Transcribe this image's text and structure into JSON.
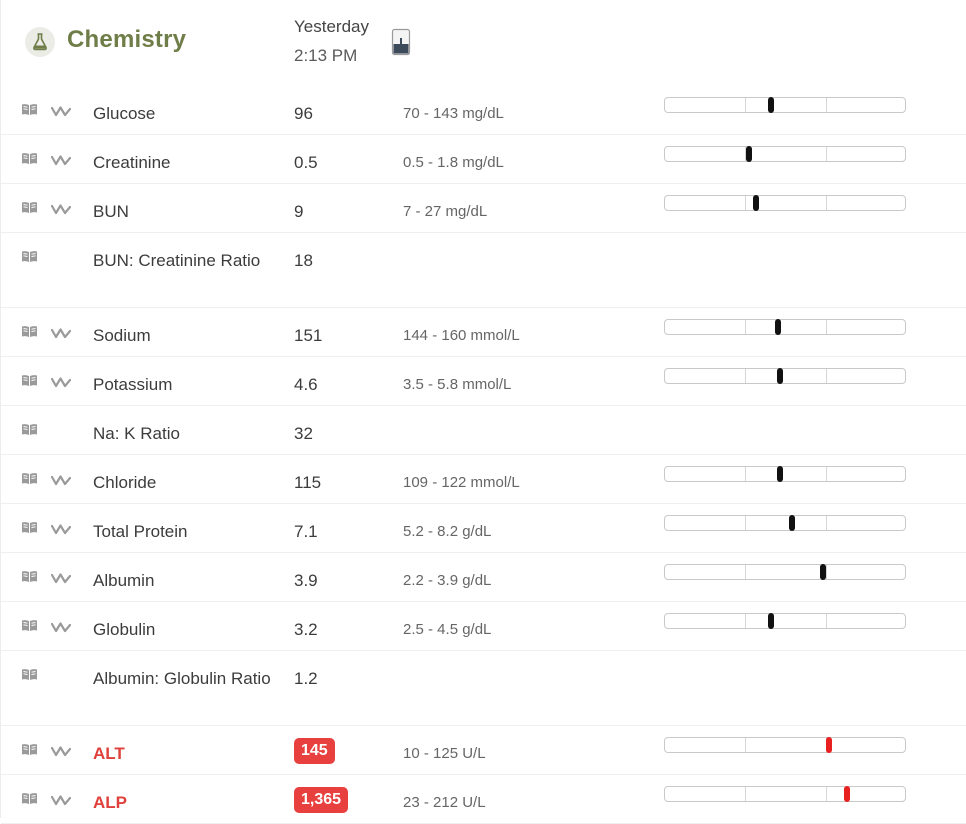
{
  "section": {
    "title": "Chemistry",
    "icon": "flask-icon",
    "date_line1": "Yesterday",
    "date_line2": "2:13 PM",
    "sample_icon": "sample-tube-icon",
    "accent_color": "#6f7d48",
    "abnormal_color": "#e8403f"
  },
  "results": [
    {
      "name": "Glucose",
      "value": "96",
      "range": "70 - 143 mg/dL",
      "trend": true,
      "level": 0.44,
      "abnormal": false
    },
    {
      "name": "Creatinine",
      "value": "0.5",
      "range": "0.5 - 1.8 mg/dL",
      "trend": true,
      "level": 0.35,
      "abnormal": false
    },
    {
      "name": "BUN",
      "value": "9",
      "range": "7 - 27 mg/dL",
      "trend": true,
      "level": 0.38,
      "abnormal": false
    },
    {
      "name": "BUN: Creatinine Ratio",
      "value": "18",
      "range": "",
      "trend": false,
      "level": null,
      "abnormal": false
    },
    {
      "name": "Sodium",
      "value": "151",
      "range": "144 - 160 mmol/L",
      "trend": true,
      "level": 0.47,
      "abnormal": false
    },
    {
      "name": "Potassium",
      "value": "4.6",
      "range": "3.5 - 5.8 mmol/L",
      "trend": true,
      "level": 0.48,
      "abnormal": false
    },
    {
      "name": "Na: K Ratio",
      "value": "32",
      "range": "",
      "trend": false,
      "level": null,
      "abnormal": false
    },
    {
      "name": "Chloride",
      "value": "115",
      "range": "109 - 122 mmol/L",
      "trend": true,
      "level": 0.48,
      "abnormal": false
    },
    {
      "name": "Total Protein",
      "value": "7.1",
      "range": "5.2 - 8.2 g/dL",
      "trend": true,
      "level": 0.53,
      "abnormal": false
    },
    {
      "name": "Albumin",
      "value": "3.9",
      "range": "2.2 - 3.9 g/dL",
      "trend": true,
      "level": 0.66,
      "abnormal": false
    },
    {
      "name": "Globulin",
      "value": "3.2",
      "range": "2.5 - 4.5 g/dL",
      "trend": true,
      "level": 0.44,
      "abnormal": false
    },
    {
      "name": "Albumin: Globulin Ratio",
      "value": "1.2",
      "range": "",
      "trend": false,
      "level": null,
      "abnormal": false
    },
    {
      "name": "ALT",
      "value": "145",
      "range": "10 - 125 U/L",
      "trend": true,
      "level": 0.685,
      "abnormal": true
    },
    {
      "name": "ALP",
      "value": "1,365",
      "range": "23 - 212 U/L",
      "trend": true,
      "level": 0.76,
      "abnormal": true
    }
  ]
}
